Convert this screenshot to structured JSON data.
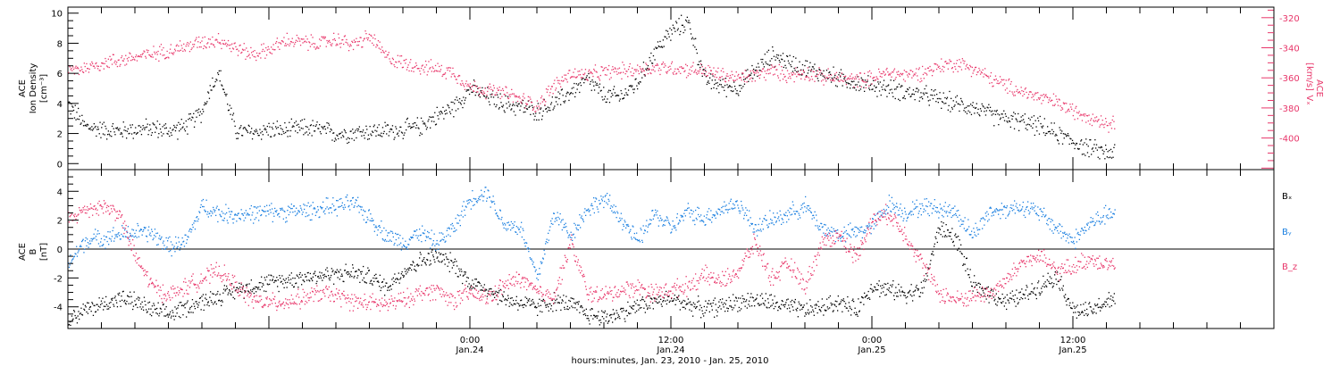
{
  "chart_data": [
    {
      "type": "scatter",
      "panel": "top",
      "ylabel_left": [
        "ACE",
        "Ion Density",
        "[cm⁻³]"
      ],
      "ylabel_right": "ACE Vx [km/s]",
      "ylim_left": [
        -0.4,
        10.4
      ],
      "yticks_left": [
        0,
        2,
        4,
        6,
        8,
        10
      ],
      "ylim_right": [
        -421,
        -313
      ],
      "yticks_right": [
        -320,
        -340,
        -360,
        -380,
        -400
      ],
      "series": [
        {
          "name": "Ion Density",
          "axis": "left",
          "color": "#000000",
          "hours": [
            0,
            1,
            2,
            3,
            4,
            5,
            6,
            7,
            8,
            8.5,
            9,
            10,
            11,
            12,
            13,
            14,
            15,
            16,
            17,
            18,
            19,
            20,
            21,
            22,
            23,
            24,
            25,
            26,
            27,
            28,
            29,
            30,
            31,
            32,
            33,
            34,
            35,
            36,
            37,
            38,
            39,
            40,
            41,
            42,
            43,
            44,
            45,
            46,
            47,
            48,
            49,
            50,
            51,
            52,
            53,
            54,
            55,
            56,
            57,
            58,
            59,
            60,
            61,
            62
          ],
          "values": [
            4.0,
            2.5,
            2.3,
            2.2,
            2.3,
            2.4,
            2.2,
            2.5,
            3.5,
            5.2,
            6.0,
            2.2,
            2.1,
            2.3,
            2.2,
            2.4,
            2.3,
            2.0,
            2.1,
            2.2,
            2.2,
            2.3,
            2.5,
            3.2,
            3.8,
            5.0,
            4.5,
            4.0,
            3.8,
            3.5,
            4.0,
            4.8,
            5.6,
            4.5,
            4.5,
            5.4,
            7.5,
            8.8,
            9.5,
            5.6,
            5.2,
            5.1,
            6.2,
            7.2,
            6.8,
            6.4,
            6.0,
            5.7,
            5.4,
            5.2,
            5.0,
            4.8,
            4.6,
            4.3,
            4.0,
            3.8,
            3.3,
            3.0,
            2.8,
            2.5,
            2.0,
            1.5,
            1.0,
            0.8
          ]
        },
        {
          "name": "Vx",
          "axis": "right",
          "color": "#e8366a",
          "hours": [
            0,
            1,
            2,
            3,
            4,
            5,
            6,
            7,
            8,
            9,
            10,
            11,
            12,
            13,
            14,
            15,
            16,
            17,
            18,
            19,
            20,
            21,
            22,
            23,
            24,
            25,
            26,
            27,
            28,
            29,
            30,
            31,
            32,
            33,
            34,
            35,
            36,
            37,
            38,
            39,
            40,
            41,
            42,
            43,
            44,
            45,
            46,
            47,
            48,
            49,
            50,
            51,
            52,
            53,
            54,
            55,
            56,
            57,
            58,
            59,
            60,
            61,
            62
          ],
          "values": [
            -355,
            -353,
            -350,
            -348,
            -346,
            -344,
            -341,
            -339,
            -336,
            -334,
            -340,
            -344,
            -341,
            -335,
            -336,
            -337,
            -334,
            -338,
            -332,
            -346,
            -350,
            -352,
            -354,
            -356,
            -366,
            -368,
            -370,
            -374,
            -378,
            -365,
            -357,
            -358,
            -356,
            -355,
            -354,
            -353,
            -353,
            -354,
            -355,
            -358,
            -360,
            -358,
            -355,
            -358,
            -356,
            -359,
            -360,
            -361,
            -360,
            -356,
            -358,
            -356,
            -352,
            -350,
            -353,
            -360,
            -365,
            -369,
            -373,
            -376,
            -382,
            -385,
            -390
          ]
        }
      ]
    },
    {
      "type": "scatter",
      "panel": "bottom",
      "ylabel_left": [
        "ACE",
        "B",
        "[nT]"
      ],
      "ylim": [
        -5.5,
        5.5
      ],
      "yticks": [
        -4,
        -2,
        0,
        2,
        4
      ],
      "zero_line": true,
      "legend": [
        "Bₓ",
        "Bᵧ",
        "B_z"
      ],
      "legend_placement": "right",
      "series": [
        {
          "name": "Bx",
          "color": "#000000",
          "hours": [
            0,
            1,
            2,
            3,
            4,
            5,
            6,
            7,
            8,
            9,
            10,
            11,
            12,
            13,
            14,
            15,
            16,
            17,
            18,
            19,
            20,
            21,
            22,
            23,
            24,
            25,
            26,
            27,
            28,
            29,
            30,
            31,
            32,
            33,
            34,
            35,
            36,
            37,
            38,
            39,
            40,
            41,
            42,
            43,
            44,
            45,
            46,
            47,
            48,
            49,
            50,
            51,
            52,
            53,
            54,
            55,
            56,
            57,
            58,
            59,
            60,
            61,
            62
          ],
          "values": [
            -4.8,
            -4.2,
            -3.8,
            -3.4,
            -3.6,
            -4.2,
            -4.5,
            -4.0,
            -3.6,
            -3.2,
            -2.8,
            -2.5,
            -2.3,
            -2.1,
            -1.9,
            -1.8,
            -1.7,
            -1.6,
            -1.9,
            -2.6,
            -1.5,
            -0.8,
            -0.5,
            -1.0,
            -2.3,
            -2.7,
            -3.4,
            -3.7,
            -4.0,
            -3.6,
            -3.8,
            -4.5,
            -4.7,
            -4.4,
            -3.9,
            -3.6,
            -3.4,
            -3.8,
            -4.1,
            -3.9,
            -3.6,
            -3.5,
            -3.7,
            -4.0,
            -4.2,
            -4.0,
            -3.6,
            -4.2,
            -2.5,
            -2.8,
            -3.0,
            -2.8,
            1.5,
            0.8,
            -2.5,
            -3.0,
            -3.6,
            -3.2,
            -2.5,
            -1.8,
            -4.2,
            -4.3,
            -3.6
          ]
        },
        {
          "name": "By",
          "color": "#1a7fe0",
          "hours": [
            0,
            1,
            2,
            3,
            4,
            5,
            6,
            7,
            8,
            9,
            10,
            11,
            12,
            13,
            14,
            15,
            16,
            17,
            18,
            19,
            20,
            21,
            22,
            23,
            24,
            25,
            26,
            27,
            28,
            29,
            30,
            31,
            32,
            33,
            34,
            35,
            36,
            37,
            38,
            39,
            40,
            41,
            42,
            43,
            44,
            45,
            46,
            47,
            48,
            49,
            50,
            51,
            52,
            53,
            54,
            55,
            56,
            57,
            58,
            59,
            60,
            61,
            62
          ],
          "values": [
            -1.0,
            0.6,
            0.8,
            1.0,
            1.2,
            1.1,
            0.2,
            0.5,
            3.0,
            2.5,
            2.4,
            2.5,
            2.6,
            2.6,
            2.7,
            2.8,
            3.0,
            3.2,
            2.2,
            1.0,
            0.5,
            1.2,
            0.4,
            1.5,
            3.5,
            4.0,
            1.8,
            1.5,
            -2.0,
            2.5,
            1.0,
            2.8,
            3.5,
            2.2,
            0.5,
            2.5,
            1.5,
            2.6,
            2.2,
            2.8,
            3.2,
            1.5,
            2.0,
            2.5,
            3.0,
            1.5,
            1.0,
            1.2,
            1.6,
            3.2,
            2.5,
            3.0,
            2.8,
            2.6,
            1.0,
            2.6,
            2.8,
            3.0,
            2.5,
            1.5,
            0.6,
            1.8,
            2.4
          ]
        },
        {
          "name": "Bz",
          "color": "#e8366a",
          "hours": [
            0,
            1,
            2,
            3,
            4,
            5,
            6,
            7,
            8,
            9,
            10,
            11,
            12,
            13,
            14,
            15,
            16,
            17,
            18,
            19,
            20,
            21,
            22,
            23,
            24,
            25,
            26,
            27,
            28,
            29,
            30,
            31,
            32,
            33,
            34,
            35,
            36,
            37,
            38,
            39,
            40,
            41,
            42,
            43,
            44,
            45,
            46,
            47,
            48,
            49,
            50,
            51,
            52,
            53,
            54,
            55,
            56,
            57,
            58,
            59,
            60,
            61,
            62
          ],
          "values": [
            2.0,
            2.8,
            3.0,
            2.6,
            -0.5,
            -2.5,
            -3.2,
            -2.6,
            -2.0,
            -1.5,
            -2.5,
            -3.5,
            -3.7,
            -3.6,
            -3.4,
            -3.0,
            -3.2,
            -3.6,
            -3.7,
            -3.8,
            -3.5,
            -3.0,
            -2.8,
            -3.5,
            -3.0,
            -3.4,
            -2.5,
            -2.0,
            -3.0,
            -3.2,
            0.5,
            -3.0,
            -3.2,
            -2.8,
            -2.6,
            -3.0,
            -2.8,
            -2.5,
            -1.8,
            -2.2,
            -1.5,
            0.5,
            -2.0,
            -1.0,
            -2.5,
            0.5,
            1.0,
            -0.5,
            2.0,
            2.5,
            1.0,
            -1.0,
            -3.0,
            -3.5,
            -3.2,
            -3.0,
            -2.2,
            -0.8,
            -0.5,
            -1.5,
            -1.2,
            -0.6,
            -1.0
          ]
        }
      ]
    }
  ],
  "x_axis": {
    "span_hours": 72,
    "major_ticks": [
      {
        "hour": 24,
        "time": "0:00",
        "date": "Jan.24"
      },
      {
        "hour": 36,
        "time": "12:00",
        "date": "Jan.24"
      },
      {
        "hour": 48,
        "time": "0:00",
        "date": "Jan.25"
      },
      {
        "hour": 60,
        "time": "12:00",
        "date": "Jan.25"
      }
    ],
    "minor_tick_step_hours": 2,
    "title": "hours:minutes, Jan. 23, 2010 - Jan. 25, 2010"
  },
  "labels": {
    "top_left": [
      "ACE",
      "Ion Density",
      "[cm⁻³]"
    ],
    "top_right_title": "ACE",
    "top_right_var": "Vₓ",
    "top_right_unit": "[km/s]",
    "bottom_left": [
      "ACE",
      "B",
      "[nT]"
    ],
    "legend": [
      "Bₓ",
      "Bᵧ",
      "B_z"
    ]
  },
  "colors": {
    "black": "#000000",
    "pink": "#e8366a",
    "blue": "#1a7fe0"
  }
}
